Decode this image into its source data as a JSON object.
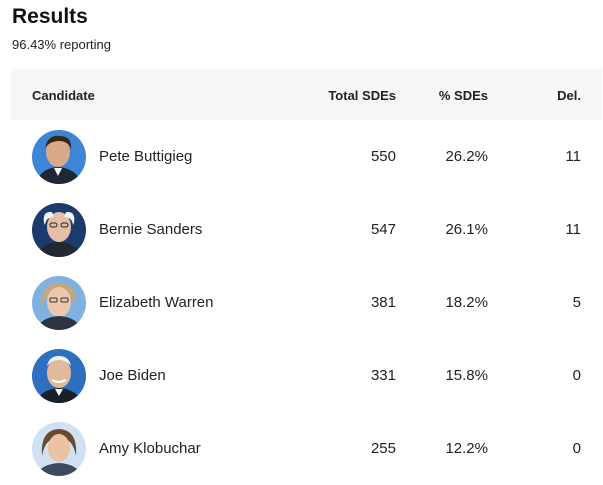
{
  "header": {
    "title": "Results",
    "reporting": "96.43% reporting"
  },
  "table": {
    "columns": {
      "candidate": "Candidate",
      "total": "Total SDEs",
      "pct": "% SDEs",
      "del": "Del."
    },
    "rows": [
      {
        "name": "Pete Buttigieg",
        "total": "550",
        "pct": "26.2%",
        "del": "11",
        "avatar_bg": "#3d86d6",
        "avatar_icon": "candidate-photo"
      },
      {
        "name": "Bernie Sanders",
        "total": "547",
        "pct": "26.1%",
        "del": "11",
        "avatar_bg": "#1c3a6b",
        "avatar_icon": "candidate-photo"
      },
      {
        "name": "Elizabeth Warren",
        "total": "381",
        "pct": "18.2%",
        "del": "5",
        "avatar_bg": "#7fb2e0",
        "avatar_icon": "candidate-photo"
      },
      {
        "name": "Joe Biden",
        "total": "331",
        "pct": "15.8%",
        "del": "0",
        "avatar_bg": "#2f6fc0",
        "avatar_icon": "candidate-photo"
      },
      {
        "name": "Amy Klobuchar",
        "total": "255",
        "pct": "12.2%",
        "del": "0",
        "avatar_bg": "#cfe1f2",
        "avatar_icon": "candidate-photo"
      }
    ]
  }
}
